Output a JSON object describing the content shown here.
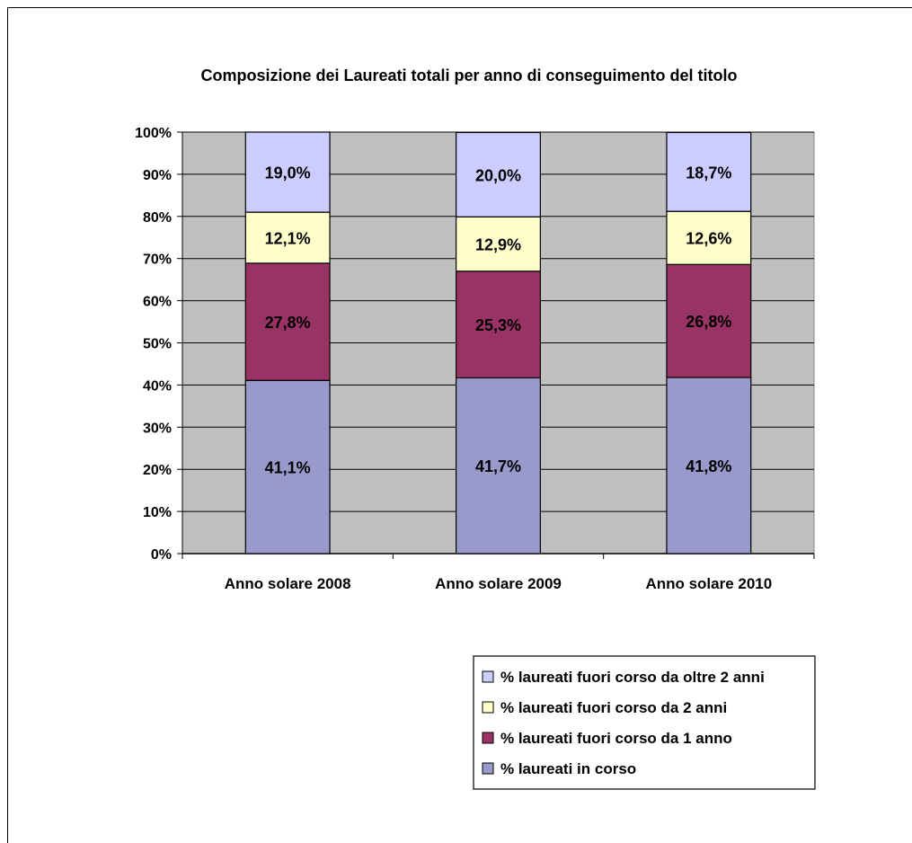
{
  "chart_data": {
    "type": "bar",
    "stacked": true,
    "title": "Composizione dei Laureati totali per anno di conseguimento del titolo",
    "xlabel": "",
    "ylabel": "",
    "ylim": [
      0,
      100
    ],
    "yticks": [
      "0%",
      "10%",
      "20%",
      "30%",
      "40%",
      "50%",
      "60%",
      "70%",
      "80%",
      "90%",
      "100%"
    ],
    "grid": true,
    "legend_position": "bottom-right",
    "categories": [
      "Anno solare 2008",
      "Anno solare 2009",
      "Anno solare 2010"
    ],
    "series": [
      {
        "name": "% laureati in corso",
        "color": "#9999cc",
        "values": [
          41.1,
          41.7,
          41.8
        ],
        "labels": [
          "41,1%",
          "41,7%",
          "41,8%"
        ]
      },
      {
        "name": "% laureati fuori corso da 1 anno",
        "color": "#993366",
        "values": [
          27.8,
          25.3,
          26.8
        ],
        "labels": [
          "27,8%",
          "25,3%",
          "26,8%"
        ]
      },
      {
        "name": "% laureati fuori corso da 2 anni",
        "color": "#ffffcc",
        "values": [
          12.1,
          12.9,
          12.6
        ],
        "labels": [
          "12,1%",
          "12,9%",
          "12,6%"
        ]
      },
      {
        "name": "% laureati fuori corso da oltre 2 anni",
        "color": "#ccccff",
        "values": [
          19.0,
          20.0,
          18.7
        ],
        "labels": [
          "19,0%",
          "20,0%",
          "18,7%"
        ]
      }
    ],
    "plot_background": "#c0c0c0"
  }
}
